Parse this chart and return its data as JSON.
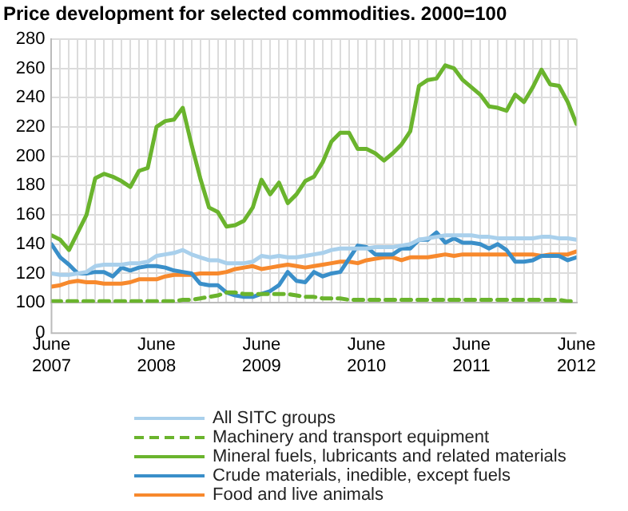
{
  "chart_data": {
    "type": "line",
    "title": "Price development for selected commodities. 2000=100",
    "x": [
      "2007-06",
      "2007-07",
      "2007-08",
      "2007-09",
      "2007-10",
      "2007-11",
      "2007-12",
      "2008-01",
      "2008-02",
      "2008-03",
      "2008-04",
      "2008-05",
      "2008-06",
      "2008-07",
      "2008-08",
      "2008-09",
      "2008-10",
      "2008-11",
      "2008-12",
      "2009-01",
      "2009-02",
      "2009-03",
      "2009-04",
      "2009-05",
      "2009-06",
      "2009-07",
      "2009-08",
      "2009-09",
      "2009-10",
      "2009-11",
      "2009-12",
      "2010-01",
      "2010-02",
      "2010-03",
      "2010-04",
      "2010-05",
      "2010-06",
      "2010-07",
      "2010-08",
      "2010-09",
      "2010-10",
      "2010-11",
      "2010-12",
      "2011-01",
      "2011-02",
      "2011-03",
      "2011-04",
      "2011-05",
      "2011-06",
      "2011-07",
      "2011-08",
      "2011-09",
      "2011-10",
      "2011-11",
      "2011-12",
      "2012-01",
      "2012-02",
      "2012-03",
      "2012-04",
      "2012-05",
      "2012-06"
    ],
    "xlim": [
      "2007-06",
      "2012-06"
    ],
    "xticks": [
      {
        "value": "2007-06",
        "label": "June\n2007"
      },
      {
        "value": "2007-07",
        "label": null
      },
      {
        "value": "2007-08",
        "label": null
      },
      {
        "value": "2007-09",
        "label": null
      },
      {
        "value": "2007-10",
        "label": null
      },
      {
        "value": "2007-11",
        "label": null
      },
      {
        "value": "2007-12",
        "label": null
      },
      {
        "value": "2008-01",
        "label": null
      },
      {
        "value": "2008-02",
        "label": null
      },
      {
        "value": "2008-03",
        "label": null
      },
      {
        "value": "2008-04",
        "label": null
      },
      {
        "value": "2008-05",
        "label": null
      },
      {
        "value": "2008-06",
        "label": "June\n2008"
      },
      {
        "value": "2008-07",
        "label": null
      },
      {
        "value": "2008-08",
        "label": null
      },
      {
        "value": "2008-09",
        "label": null
      },
      {
        "value": "2008-10",
        "label": null
      },
      {
        "value": "2008-11",
        "label": null
      },
      {
        "value": "2008-12",
        "label": null
      },
      {
        "value": "2009-01",
        "label": null
      },
      {
        "value": "2009-02",
        "label": null
      },
      {
        "value": "2009-03",
        "label": null
      },
      {
        "value": "2009-04",
        "label": null
      },
      {
        "value": "2009-05",
        "label": null
      },
      {
        "value": "2009-06",
        "label": "June\n2009"
      },
      {
        "value": "2009-07",
        "label": null
      },
      {
        "value": "2009-08",
        "label": null
      },
      {
        "value": "2009-09",
        "label": null
      },
      {
        "value": "2009-10",
        "label": null
      },
      {
        "value": "2009-11",
        "label": null
      },
      {
        "value": "2009-12",
        "label": null
      },
      {
        "value": "2010-01",
        "label": null
      },
      {
        "value": "2010-02",
        "label": null
      },
      {
        "value": "2010-03",
        "label": null
      },
      {
        "value": "2010-04",
        "label": null
      },
      {
        "value": "2010-05",
        "label": null
      },
      {
        "value": "2010-06",
        "label": "June\n2010"
      },
      {
        "value": "2010-07",
        "label": null
      },
      {
        "value": "2010-08",
        "label": null
      },
      {
        "value": "2010-09",
        "label": null
      },
      {
        "value": "2010-10",
        "label": null
      },
      {
        "value": "2010-11",
        "label": null
      },
      {
        "value": "2010-12",
        "label": null
      },
      {
        "value": "2011-01",
        "label": null
      },
      {
        "value": "2011-02",
        "label": null
      },
      {
        "value": "2011-03",
        "label": null
      },
      {
        "value": "2011-04",
        "label": null
      },
      {
        "value": "2011-05",
        "label": null
      },
      {
        "value": "2011-06",
        "label": "June\n2011"
      },
      {
        "value": "2011-07",
        "label": null
      },
      {
        "value": "2011-08",
        "label": null
      },
      {
        "value": "2011-09",
        "label": null
      },
      {
        "value": "2011-10",
        "label": null
      },
      {
        "value": "2011-11",
        "label": null
      },
      {
        "value": "2011-12",
        "label": null
      },
      {
        "value": "2012-01",
        "label": null
      },
      {
        "value": "2012-02",
        "label": null
      },
      {
        "value": "2012-03",
        "label": null
      },
      {
        "value": "2012-04",
        "label": null
      },
      {
        "value": "2012-05",
        "label": null
      },
      {
        "value": "2012-06",
        "label": "June\n2012"
      }
    ],
    "ylim": [
      100,
      280
    ],
    "yticks": [
      100,
      120,
      140,
      160,
      180,
      200,
      220,
      240,
      260,
      280
    ],
    "annotations": [
      "0"
    ],
    "grid": true,
    "legend": "bottom",
    "marker": "none",
    "series": [
      {
        "name": "All SITC groups",
        "color": "#a9d0ec",
        "values": [
          120,
          119,
          119,
          120,
          121,
          125,
          126,
          126,
          126,
          127,
          127,
          128,
          132,
          133,
          134,
          136,
          133,
          131,
          129,
          129,
          127,
          127,
          127,
          128,
          132,
          131,
          132,
          131,
          131,
          132,
          133,
          134,
          136,
          137,
          137,
          137,
          137,
          138,
          138,
          138,
          139,
          140,
          143,
          144,
          145,
          146,
          146,
          146,
          146,
          145,
          145,
          144,
          144,
          144,
          144,
          144,
          145,
          145,
          144,
          144,
          143
        ]
      },
      {
        "name": "Machinery and transport equipment",
        "color": "#6ab42d",
        "line_style": "dashed",
        "values": [
          101,
          101,
          101,
          101,
          101,
          101,
          101,
          101,
          101,
          101,
          101,
          101,
          101,
          101,
          101,
          102,
          102,
          103,
          104,
          105,
          107,
          107,
          106,
          106,
          106,
          106,
          106,
          106,
          105,
          104,
          104,
          103,
          103,
          103,
          102,
          102,
          102,
          102,
          102,
          102,
          102,
          102,
          102,
          102,
          102,
          102,
          102,
          102,
          102,
          102,
          102,
          102,
          102,
          102,
          102,
          102,
          102,
          102,
          102,
          101,
          101
        ]
      },
      {
        "name": "Mineral fuels, lubricants and related materials",
        "color": "#6ab42d",
        "values": [
          146,
          143,
          136,
          148,
          160,
          185,
          188,
          186,
          183,
          179,
          190,
          192,
          220,
          224,
          225,
          233,
          208,
          185,
          165,
          162,
          152,
          153,
          156,
          165,
          184,
          174,
          182,
          168,
          174,
          183,
          186,
          196,
          210,
          216,
          216,
          205,
          205,
          202,
          197,
          202,
          208,
          217,
          248,
          252,
          253,
          262,
          260,
          252,
          247,
          242,
          234,
          233,
          231,
          242,
          237,
          247,
          259,
          249,
          248,
          237,
          222
        ]
      },
      {
        "name": "Crude materials, inedible, except fuels",
        "color": "#3a8fc9",
        "values": [
          140,
          131,
          126,
          120,
          120,
          121,
          121,
          118,
          124,
          122,
          124,
          125,
          125,
          124,
          122,
          121,
          120,
          113,
          112,
          112,
          107,
          105,
          104,
          104,
          106,
          108,
          112,
          121,
          115,
          114,
          121,
          118,
          120,
          121,
          130,
          139,
          138,
          133,
          133,
          133,
          137,
          137,
          143,
          143,
          148,
          141,
          144,
          141,
          141,
          140,
          137,
          140,
          136,
          128,
          128,
          129,
          132,
          132,
          132,
          129,
          131
        ]
      },
      {
        "name": "Food and live animals",
        "color": "#f7892d",
        "values": [
          111,
          112,
          114,
          115,
          114,
          114,
          113,
          113,
          113,
          114,
          116,
          116,
          116,
          118,
          119,
          119,
          119,
          120,
          120,
          120,
          121,
          123,
          124,
          125,
          123,
          124,
          125,
          126,
          125,
          124,
          125,
          126,
          127,
          128,
          128,
          127,
          129,
          130,
          131,
          131,
          129,
          131,
          131,
          131,
          132,
          133,
          132,
          133,
          133,
          133,
          133,
          133,
          133,
          133,
          133,
          133,
          132,
          133,
          133,
          133,
          135
        ]
      }
    ]
  }
}
